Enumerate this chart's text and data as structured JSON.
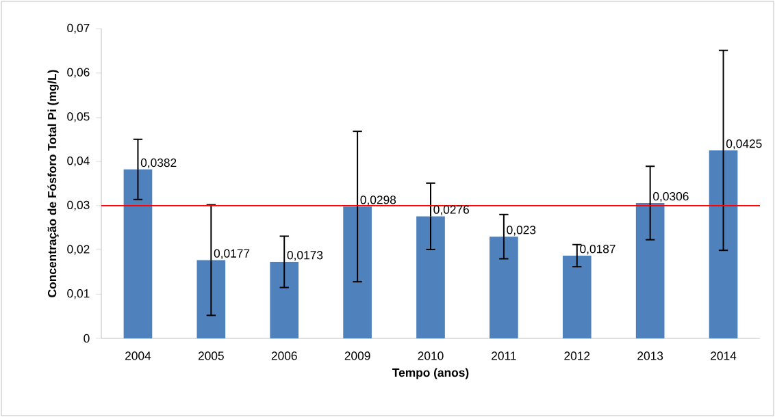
{
  "chart_data": {
    "type": "bar",
    "xlabel": "Tempo (anos)",
    "ylabel": "Concentração de Fósforo Total Pi (mg/L)",
    "categories": [
      "2004",
      "2005",
      "2006",
      "2009",
      "2010",
      "2011",
      "2012",
      "2013",
      "2014"
    ],
    "values": [
      0.0382,
      0.0177,
      0.0173,
      0.0298,
      0.0276,
      0.023,
      0.0187,
      0.0306,
      0.0425
    ],
    "errors": [
      0.0068,
      0.0125,
      0.0058,
      0.017,
      0.0075,
      0.005,
      0.0025,
      0.0083,
      0.0226
    ],
    "value_labels": [
      "0,0382",
      "0,0177",
      "0,0173",
      "0,0298",
      "0,0276",
      "0,023",
      "0,0187",
      "0,0306",
      "0,0425"
    ],
    "color": "#4f81bd",
    "ylim": [
      0,
      0.07
    ],
    "yticks": [
      {
        "value": 0,
        "label": "0"
      },
      {
        "value": 0.01,
        "label": "0,01"
      },
      {
        "value": 0.02,
        "label": "0,02"
      },
      {
        "value": 0.03,
        "label": "0,03"
      },
      {
        "value": 0.04,
        "label": "0,04"
      },
      {
        "value": 0.05,
        "label": "0,05"
      },
      {
        "value": 0.06,
        "label": "0,06"
      },
      {
        "value": 0.07,
        "label": "0,07"
      }
    ],
    "ref_lines": [
      {
        "axis": "y",
        "value": 0.03,
        "color": "#ff0000"
      }
    ]
  }
}
